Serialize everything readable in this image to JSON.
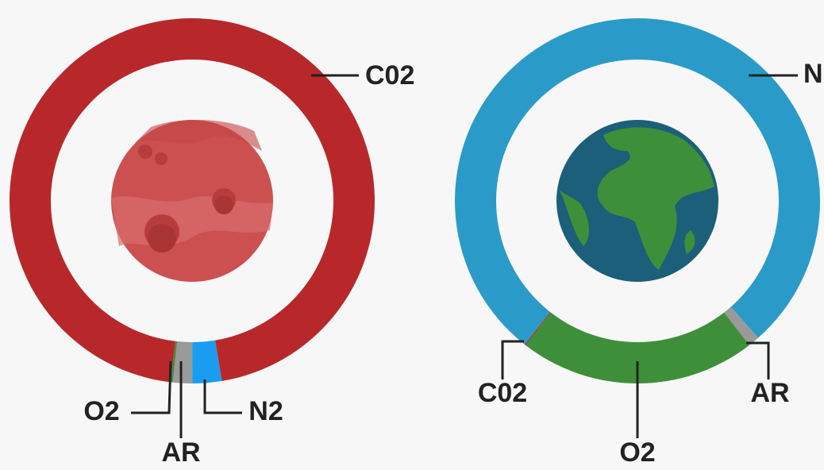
{
  "chart_data": [
    {
      "type": "donut",
      "categories": [
        "N2",
        "AR",
        "O2",
        "C02"
      ],
      "values": [
        2.6,
        1.7,
        0.2,
        95.5
      ],
      "colors": [
        "#1a9cf0",
        "#9a9a9a",
        "#3e8e3e",
        "#b8282a"
      ]
    },
    {
      "type": "donut",
      "categories": [
        "AR",
        "O2",
        "C02",
        "N"
      ],
      "values": [
        1,
        21,
        0.1,
        77.9
      ],
      "colors": [
        "#9a9a9a",
        "#3e8f3a",
        "#b8282a",
        "#2a9bc8"
      ]
    }
  ]
}
